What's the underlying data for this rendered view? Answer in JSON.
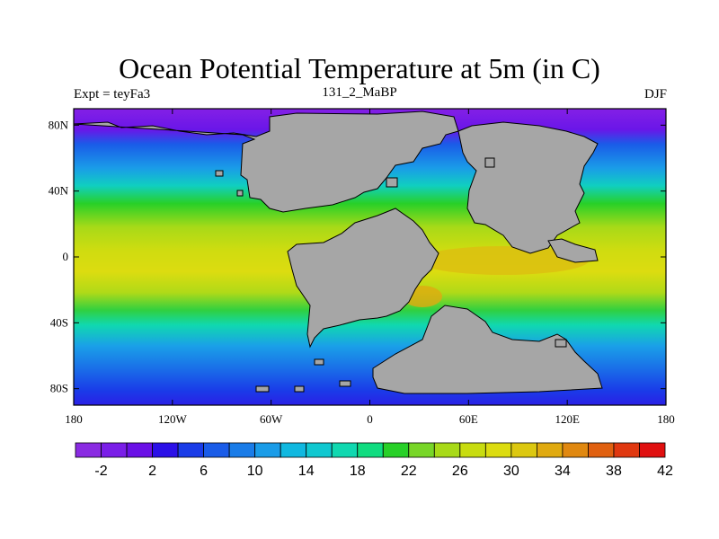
{
  "title": "Ocean Potential Temperature at 5m (in C)",
  "subtitle_left": "Expt = teyFa3",
  "subtitle_center": "131_2_MaBP",
  "subtitle_right": "DJF",
  "map": {
    "projection": "cylindrical equidistant",
    "lon_range": [
      -180,
      180
    ],
    "lat_range": [
      -90,
      90
    ],
    "land_color": "#a6a6a6",
    "lon_ticks": [
      {
        "value": -180,
        "label": "180"
      },
      {
        "value": -120,
        "label": "120W"
      },
      {
        "value": -60,
        "label": "60W"
      },
      {
        "value": 0,
        "label": "0"
      },
      {
        "value": 60,
        "label": "60E"
      },
      {
        "value": 120,
        "label": "120E"
      },
      {
        "value": 180,
        "label": "180"
      }
    ],
    "lat_ticks": [
      {
        "value": 80,
        "label": "80N"
      },
      {
        "value": 40,
        "label": "40N"
      },
      {
        "value": 0,
        "label": "0"
      },
      {
        "value": -40,
        "label": "40S"
      },
      {
        "value": -80,
        "label": "80S"
      }
    ]
  },
  "colorbar": {
    "colors": [
      "#8a2be2",
      "#7a1ee8",
      "#6a10e6",
      "#2b10e8",
      "#1a3ce8",
      "#1a5ce8",
      "#1a7ce8",
      "#1a9ce8",
      "#10b8e0",
      "#10c8d0",
      "#10d8b0",
      "#10dc80",
      "#28d028",
      "#78d628",
      "#a8da18",
      "#c8dc10",
      "#dcdc10",
      "#dcc810",
      "#e0aa10",
      "#e08810",
      "#e06010",
      "#e03810",
      "#e01010"
    ],
    "labels": [
      {
        "value": -2,
        "label": "-2"
      },
      {
        "value": 2,
        "label": "2"
      },
      {
        "value": 6,
        "label": "6"
      },
      {
        "value": 10,
        "label": "10"
      },
      {
        "value": 14,
        "label": "14"
      },
      {
        "value": 18,
        "label": "18"
      },
      {
        "value": 22,
        "label": "22"
      },
      {
        "value": 26,
        "label": "26"
      },
      {
        "value": 30,
        "label": "30"
      },
      {
        "value": 34,
        "label": "34"
      },
      {
        "value": 38,
        "label": "38"
      },
      {
        "value": 42,
        "label": "42"
      }
    ]
  }
}
